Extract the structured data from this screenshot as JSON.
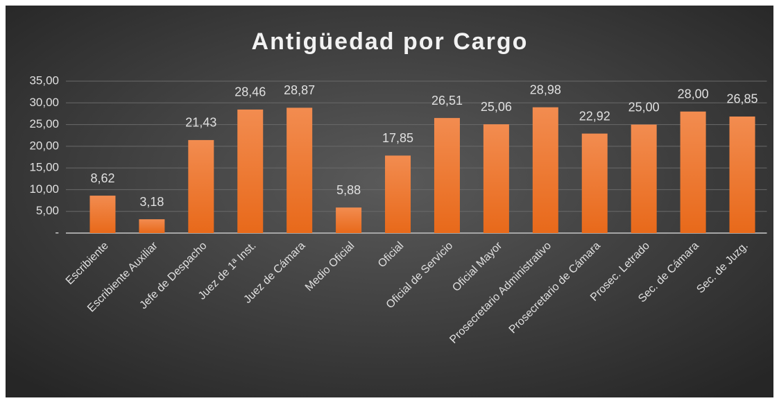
{
  "chart_data": {
    "type": "bar",
    "title": "Antigüedad por Cargo",
    "categories": [
      "Escribiente",
      "Escribiente Auxiliar",
      "Jefe de Despacho",
      "Juez de 1ª Inst.",
      "Juez de Cámara",
      "Medio Oficial",
      "Oficial",
      "Oficial de Servicio",
      "Oficial Mayor",
      "Prosecretario Administrativo",
      "Prosecretario de Cámara",
      "Prosec. Letrado",
      "Sec. de Cámara",
      "Sec. de Juzg."
    ],
    "values": [
      8.62,
      3.18,
      21.43,
      28.46,
      28.87,
      5.88,
      17.85,
      26.51,
      25.06,
      28.98,
      22.92,
      25.0,
      28.0,
      26.85
    ],
    "value_labels": [
      "8,62",
      "3,18",
      "21,43",
      "28,46",
      "28,87",
      "5,88",
      "17,85",
      "26,51",
      "25,06",
      "28,98",
      "22,92",
      "25,00",
      "28,00",
      "26,85"
    ],
    "color": "#ed7d31",
    "ylim": [
      0,
      35
    ],
    "yticks": [
      {
        "value": 0,
        "label": "-"
      },
      {
        "value": 5,
        "label": "5,00"
      },
      {
        "value": 10,
        "label": "10,00"
      },
      {
        "value": 15,
        "label": "15,00"
      },
      {
        "value": 20,
        "label": "20,00"
      },
      {
        "value": 25,
        "label": "25,00"
      },
      {
        "value": 30,
        "label": "30,00"
      },
      {
        "value": 35,
        "label": "35,00"
      }
    ],
    "grid": true
  }
}
